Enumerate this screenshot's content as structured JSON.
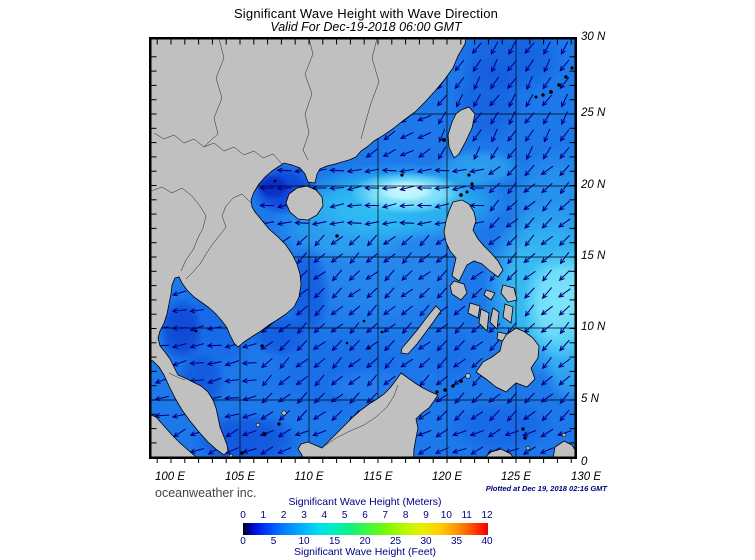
{
  "title": "Significant Wave Height with Wave Direction",
  "subtitle": "Valid For Dec-19-2018 06:00 GMT",
  "map": {
    "lon_labels": [
      "100 E",
      "105 E",
      "110 E",
      "115 E",
      "120 E",
      "125 E",
      "130 E"
    ],
    "lat_labels": [
      "30 N",
      "25 N",
      "20 N",
      "15 N",
      "10 N",
      "5 N",
      "0"
    ]
  },
  "legend": {
    "meters_label": "Significant Wave Height (Meters)",
    "feet_label": "Significant Wave Height (Feet)",
    "meters_ticks": [
      "0",
      "1",
      "2",
      "3",
      "4",
      "5",
      "6",
      "7",
      "8",
      "9",
      "10",
      "11",
      "12"
    ],
    "feet_ticks": [
      "0",
      "5",
      "10",
      "15",
      "20",
      "25",
      "30",
      "35",
      "40"
    ]
  },
  "credits": {
    "org": "oceanweather inc.",
    "plotted": "Plotted at Dec 19, 2018 02:16 GMT"
  },
  "icons": {
    "wave_arrow": "wave-direction-arrow"
  },
  "colors": {
    "land": "#C0C0C0",
    "coastline": "#000000",
    "ocean_base": "#1D79EA",
    "wave_highlight_cyan": "#9FF2FC",
    "arrow": "#000080",
    "legend_text": "#000080",
    "axis_text": "#000000",
    "credit_text": "#444444",
    "colorbar_stops": [
      "#000000 0%",
      "#00007F 2%",
      "#0010E0 5%",
      "#0040FF 10%",
      "#0080FF 17%",
      "#00B0FF 24%",
      "#00DFF0 31%",
      "#00EFC0 37%",
      "#10F080 44%",
      "#40F840 51%",
      "#80F800 59%",
      "#B8F800 66%",
      "#E8F000 73%",
      "#FFD000 80%",
      "#FFA000 86%",
      "#FF6000 92%",
      "#FF2000 97%",
      "#F00000 100%"
    ]
  }
}
